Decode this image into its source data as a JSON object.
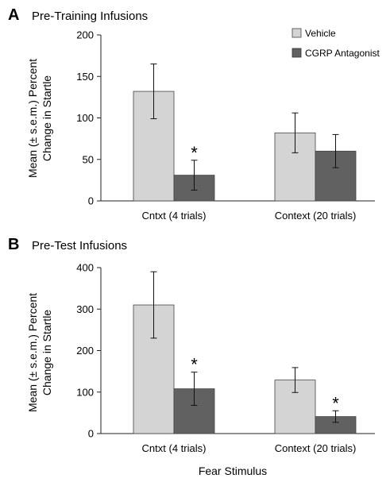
{
  "chart_data": [
    {
      "type": "bar",
      "panel_letter": "A",
      "title": "Pre-Training Infusions",
      "ylabel_line1": "Mean (± s.e.m.) Percent",
      "ylabel_line2": "Change in Startle",
      "xlabel": "",
      "ylim": [
        0,
        200
      ],
      "yticks": [
        0,
        50,
        100,
        150,
        200
      ],
      "categories": [
        "Cntxt (4 trials)",
        "Context (20 trials)"
      ],
      "series": [
        {
          "name": "Vehicle",
          "color": "#d4d4d4",
          "values": [
            132,
            82
          ],
          "errors": [
            33,
            24
          ],
          "significant": [
            false,
            false
          ]
        },
        {
          "name": "CGRP Antagonist",
          "color": "#616161",
          "values": [
            31,
            60
          ],
          "errors": [
            18,
            20
          ],
          "significant": [
            true,
            false
          ]
        }
      ],
      "significance_marker": "*",
      "legend_position": "top-right",
      "grid": false
    },
    {
      "type": "bar",
      "panel_letter": "B",
      "title": "Pre-Test Infusions",
      "ylabel_line1": "Mean (± s.e.m.) Percent",
      "ylabel_line2": "Change in Startle",
      "xlabel": "Fear Stimulus",
      "ylim": [
        0,
        400
      ],
      "yticks": [
        0,
        100,
        200,
        300,
        400
      ],
      "categories": [
        "Cntxt (4 trials)",
        "Context (20 trials)"
      ],
      "series": [
        {
          "name": "Vehicle",
          "color": "#d4d4d4",
          "values": [
            310,
            129
          ],
          "errors": [
            80,
            30
          ],
          "significant": [
            false,
            false
          ]
        },
        {
          "name": "CGRP Antagonist",
          "color": "#616161",
          "values": [
            108,
            41
          ],
          "errors": [
            40,
            14
          ],
          "significant": [
            true,
            true
          ]
        }
      ],
      "significance_marker": "*",
      "grid": false
    }
  ]
}
